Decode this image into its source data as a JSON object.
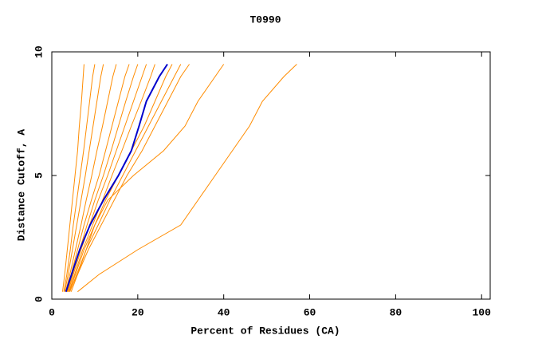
{
  "chart_data": {
    "type": "line",
    "title": "T0990",
    "x_label": "Percent of Residues (CA)",
    "y_label": "Distance Cutoff, A",
    "xlim": [
      0,
      102
    ],
    "xticks": [
      0,
      20,
      40,
      60,
      80,
      100
    ],
    "ylim": [
      0,
      10
    ],
    "yticks": [
      0,
      5,
      10
    ],
    "series": [
      {
        "color": "#ff8c00",
        "x": [
          2.5,
          3,
          3.6,
          4.2,
          4.8,
          5.4,
          6,
          6.4,
          6.9,
          7.3,
          7.5
        ],
        "values": [
          0.3,
          1,
          2,
          3,
          4,
          5,
          6,
          7,
          8,
          9,
          9.5
        ]
      },
      {
        "color": "#ff8c00",
        "x": [
          2.8,
          3.5,
          4.3,
          5,
          5.8,
          6.6,
          7.4,
          8.1,
          8.8,
          9.5,
          10
        ],
        "values": [
          0.3,
          1,
          2,
          3,
          4,
          5,
          6,
          7,
          8,
          9,
          9.5
        ]
      },
      {
        "color": "#ff8c00",
        "x": [
          3,
          3.8,
          4.8,
          5.8,
          6.8,
          7.8,
          8.7,
          9.6,
          10.5,
          11.4,
          12
        ],
        "values": [
          0.3,
          1,
          2,
          3,
          4,
          5,
          6,
          7,
          8,
          9,
          9.5
        ]
      },
      {
        "color": "#ff8c00",
        "x": [
          3.2,
          4.2,
          5.5,
          6.8,
          8,
          9.3,
          10.5,
          11.8,
          13,
          14.2,
          15
        ],
        "values": [
          0.3,
          1,
          2,
          3,
          4,
          5,
          6,
          7,
          8,
          9,
          9.5
        ]
      },
      {
        "color": "#ff8c00",
        "x": [
          3.5,
          4.5,
          6,
          7.5,
          9.2,
          11,
          12.5,
          14,
          15.5,
          17,
          18
        ],
        "values": [
          0.3,
          1,
          2,
          3,
          4,
          5,
          6,
          7,
          8,
          9,
          9.5
        ]
      },
      {
        "color": "#ff8c00",
        "x": [
          3.6,
          4.8,
          6.5,
          8.2,
          10,
          12,
          13.8,
          15.5,
          17.2,
          19,
          20
        ],
        "values": [
          0.3,
          1,
          2,
          3,
          4,
          5,
          6,
          7,
          8,
          9,
          9.5
        ]
      },
      {
        "color": "#ff8c00",
        "x": [
          3.8,
          5,
          6.8,
          8.8,
          10.8,
          13,
          15,
          17,
          19,
          21,
          22
        ],
        "values": [
          0.3,
          1,
          2,
          3,
          4,
          5,
          6,
          7,
          8,
          9,
          9.5
        ]
      },
      {
        "color": "#ff8c00",
        "x": [
          4,
          5.3,
          7.2,
          9.5,
          11.8,
          14,
          16.3,
          18.5,
          20.8,
          23,
          24
        ],
        "values": [
          0.3,
          1,
          2,
          3,
          4,
          5,
          6,
          7,
          8,
          9,
          9.5
        ]
      },
      {
        "color": "#ff8c00",
        "x": [
          4,
          5.5,
          7.5,
          10,
          12.5,
          15.5,
          18.5,
          21.5,
          24,
          26.5,
          28
        ],
        "values": [
          0.3,
          1,
          2,
          3,
          4,
          5,
          6,
          7,
          8,
          9,
          9.5
        ]
      },
      {
        "color": "#ff8c00",
        "x": [
          4.2,
          5.8,
          8,
          10.8,
          13.5,
          16.5,
          19.5,
          22.5,
          25.5,
          28.5,
          30
        ],
        "values": [
          0.3,
          1,
          2,
          3,
          4,
          5,
          6,
          7,
          8,
          9,
          9.5
        ]
      },
      {
        "color": "#ff8c00",
        "x": [
          4.5,
          6,
          8.5,
          11.5,
          14.5,
          17.5,
          21,
          24,
          27,
          30,
          32
        ],
        "values": [
          0.3,
          1,
          2,
          3,
          4,
          5,
          6,
          7,
          8,
          9,
          9.5
        ]
      },
      {
        "color": "#ff8c00",
        "x": [
          4,
          6,
          8,
          10,
          13,
          19,
          26,
          31,
          34,
          38,
          40
        ],
        "values": [
          0.3,
          1,
          2,
          3,
          4,
          5,
          6,
          7,
          8,
          9,
          9.5
        ]
      },
      {
        "color": "#ff8c00",
        "x": [
          6,
          11,
          20,
          30,
          34,
          38,
          42,
          46,
          49,
          54,
          57
        ],
        "values": [
          0.3,
          1,
          2,
          3,
          4,
          5,
          6,
          7,
          8,
          9,
          9.5
        ]
      },
      {
        "color": "#0000cc",
        "x": [
          3.3,
          4.6,
          6.5,
          8.9,
          12,
          15.5,
          18.5,
          20.3,
          22,
          25,
          26.9
        ],
        "values": [
          0.3,
          1,
          2,
          3,
          4,
          5,
          6,
          7,
          8,
          9,
          9.5
        ]
      }
    ]
  }
}
